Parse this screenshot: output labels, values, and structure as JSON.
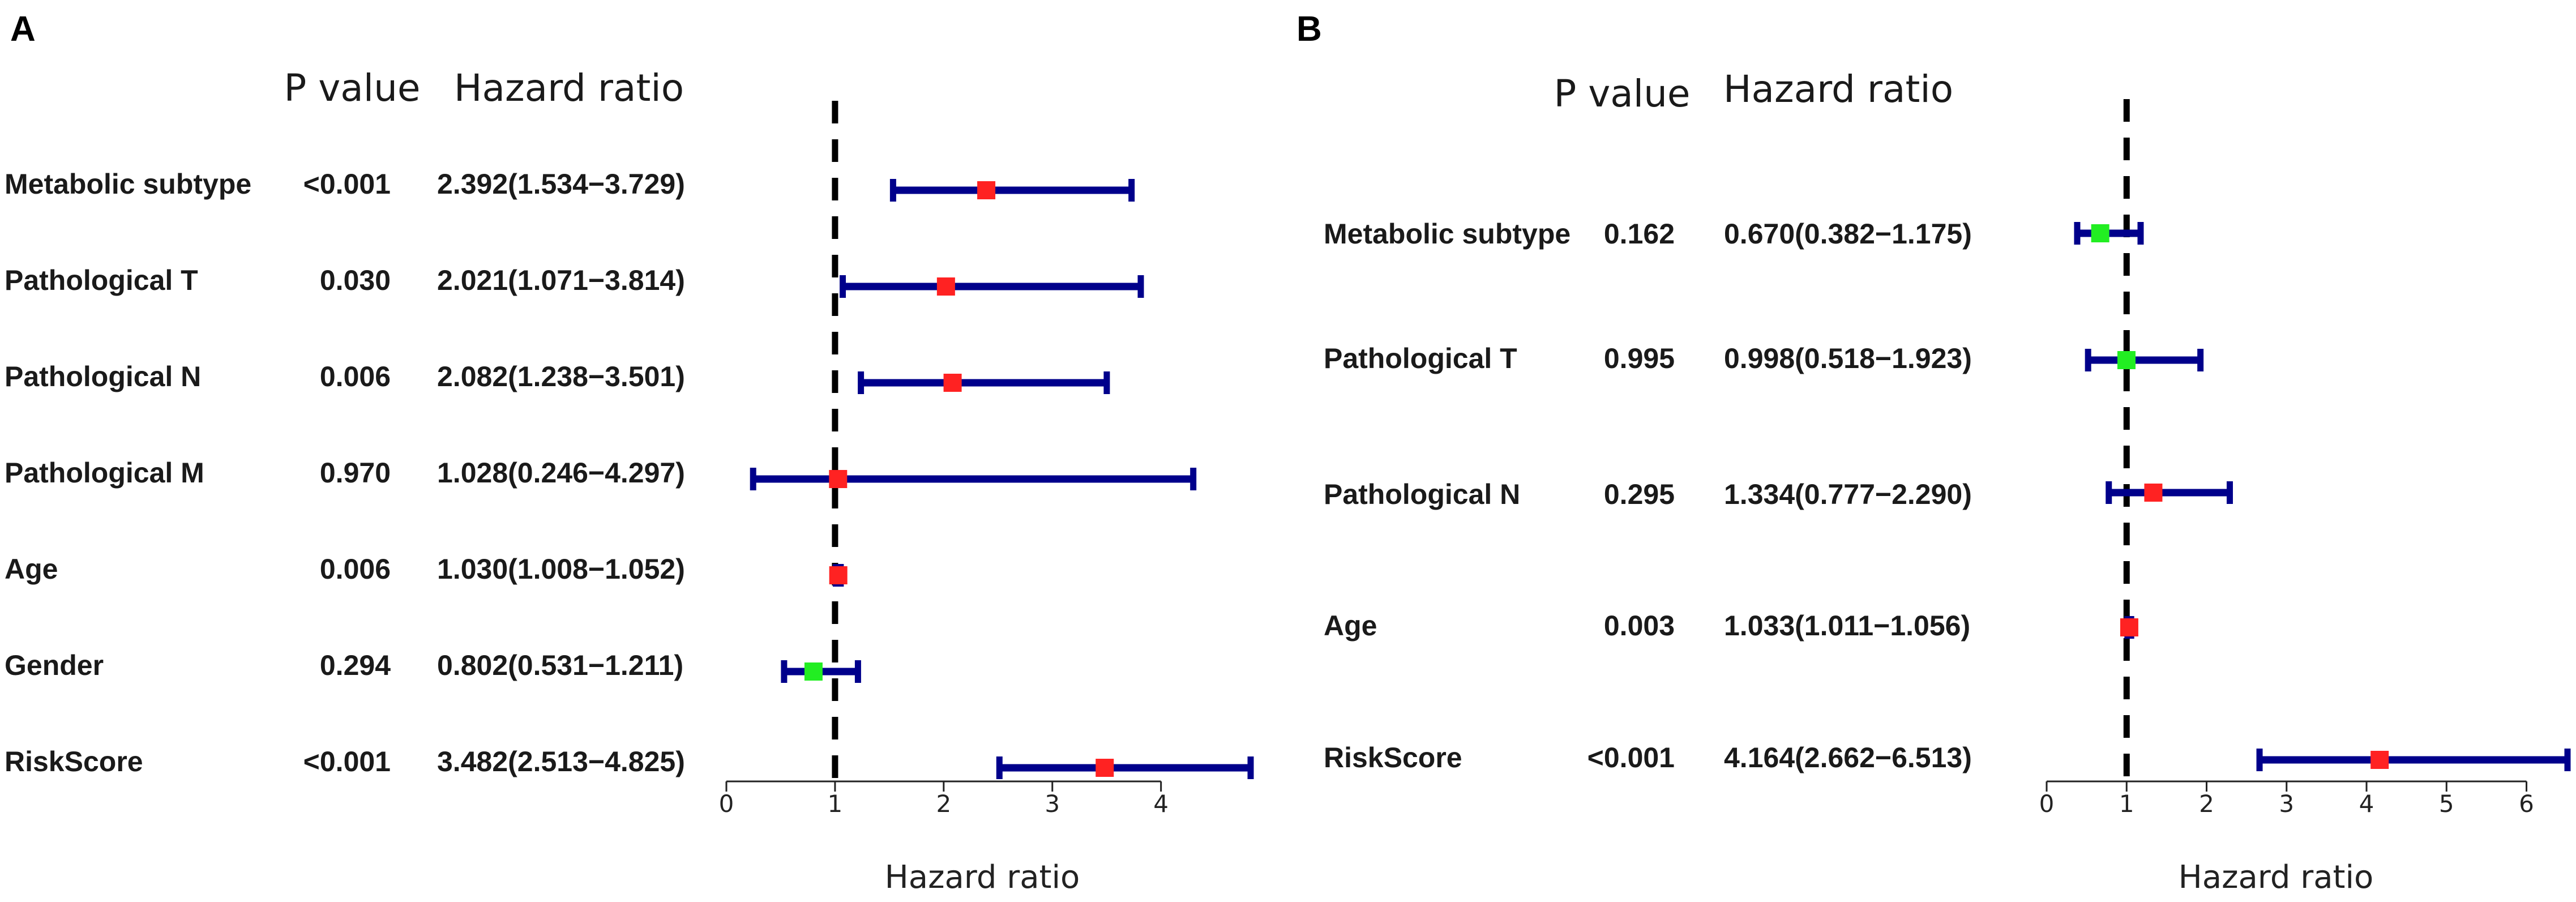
{
  "colors": {
    "ci": "#00008B",
    "sig": "#FF2222",
    "nonsig": "#22EE22",
    "ref": "#000000"
  },
  "chart_data": [
    {
      "type": "forest",
      "panel": "A",
      "header_p": "P value",
      "header_hr": "Hazard ratio",
      "xlabel": "Hazard ratio",
      "xlim": [
        0,
        4.825
      ],
      "xticks": [
        "0",
        "1",
        "2",
        "3",
        "4"
      ],
      "reference": 1,
      "rows": [
        {
          "label": "Metabolic subtype",
          "p": "<0.001",
          "hr_text": "2.392(1.534−3.729)",
          "hr": 2.392,
          "lower": 1.534,
          "upper": 3.729,
          "significant": true
        },
        {
          "label": "Pathological T",
          "p": "0.030",
          "hr_text": "2.021(1.071−3.814)",
          "hr": 2.021,
          "lower": 1.071,
          "upper": 3.814,
          "significant": true
        },
        {
          "label": "Pathological N",
          "p": "0.006",
          "hr_text": "2.082(1.238−3.501)",
          "hr": 2.082,
          "lower": 1.238,
          "upper": 3.501,
          "significant": true
        },
        {
          "label": "Pathological M",
          "p": "0.970",
          "hr_text": "1.028(0.246−4.297)",
          "hr": 1.028,
          "lower": 0.246,
          "upper": 4.297,
          "significant": true
        },
        {
          "label": "Age",
          "p": "0.006",
          "hr_text": "1.030(1.008−1.052)",
          "hr": 1.03,
          "lower": 1.008,
          "upper": 1.052,
          "significant": true
        },
        {
          "label": "Gender",
          "p": "0.294",
          "hr_text": "0.802(0.531−1.211)",
          "hr": 0.802,
          "lower": 0.531,
          "upper": 1.211,
          "significant": false
        },
        {
          "label": "RiskScore",
          "p": "<0.001",
          "hr_text": "3.482(2.513−4.825)",
          "hr": 3.482,
          "lower": 2.513,
          "upper": 4.825,
          "significant": true
        }
      ]
    },
    {
      "type": "forest",
      "panel": "B",
      "header_p": "P value",
      "header_hr": "Hazard ratio",
      "xlabel": "Hazard ratio",
      "xlim": [
        0,
        6.513
      ],
      "xticks": [
        "0",
        "1",
        "2",
        "3",
        "4",
        "5",
        "6"
      ],
      "reference": 1,
      "rows": [
        {
          "label": "Metabolic subtype",
          "p": "0.162",
          "hr_text": "0.670(0.382−1.175)",
          "hr": 0.67,
          "lower": 0.382,
          "upper": 1.175,
          "significant": false
        },
        {
          "label": "Pathological T",
          "p": "0.995",
          "hr_text": "0.998(0.518−1.923)",
          "hr": 0.998,
          "lower": 0.518,
          "upper": 1.923,
          "significant": false
        },
        {
          "label": "Pathological N",
          "p": "0.295",
          "hr_text": "1.334(0.777−2.290)",
          "hr": 1.334,
          "lower": 0.777,
          "upper": 2.29,
          "significant": true
        },
        {
          "label": "Age",
          "p": "0.003",
          "hr_text": "1.033(1.011−1.056)",
          "hr": 1.033,
          "lower": 1.011,
          "upper": 1.056,
          "significant": true
        },
        {
          "label": "RiskScore",
          "p": "<0.001",
          "hr_text": "4.164(2.662−6.513)",
          "hr": 4.164,
          "lower": 2.662,
          "upper": 6.513,
          "significant": true
        }
      ]
    }
  ]
}
